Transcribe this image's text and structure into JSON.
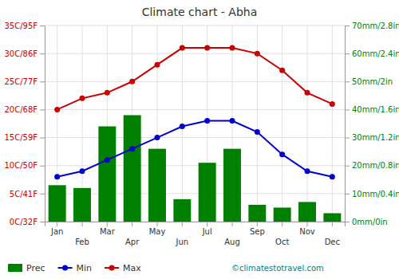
{
  "chart_data": {
    "type": "bar",
    "title": "Climate chart - Abha",
    "categories": [
      "Jan",
      "Feb",
      "Mar",
      "Apr",
      "May",
      "Jun",
      "Jul",
      "Aug",
      "Sep",
      "Oct",
      "Nov",
      "Dec"
    ],
    "series": [
      {
        "name": "Prec",
        "type": "bar",
        "axis": "y2",
        "color": "#008000",
        "values": [
          13,
          12,
          34,
          38,
          26,
          8,
          21,
          26,
          6,
          5,
          7,
          3
        ]
      },
      {
        "name": "Min",
        "type": "line",
        "color": "#0000cc",
        "marker": "circle",
        "line_style": "solid",
        "values": [
          8,
          9,
          11,
          13,
          15,
          17,
          18,
          18,
          16,
          12,
          9,
          8
        ]
      },
      {
        "name": "Max",
        "type": "line",
        "color": "#cc0000",
        "marker": "circle",
        "line_style": "solid",
        "values": [
          20,
          22,
          23,
          25,
          28,
          31,
          31,
          31,
          30,
          27,
          23,
          21
        ]
      }
    ],
    "ylim": [
      0,
      35
    ],
    "yticks": [
      {
        "value": 0,
        "label": "0C/32F"
      },
      {
        "value": 5,
        "label": "5C/41F"
      },
      {
        "value": 10,
        "label": "10C/50F"
      },
      {
        "value": 15,
        "label": "15C/59F"
      },
      {
        "value": 20,
        "label": "20C/68F"
      },
      {
        "value": 25,
        "label": "25C/77F"
      },
      {
        "value": 30,
        "label": "30C/86F"
      },
      {
        "value": 35,
        "label": "35C/95F"
      }
    ],
    "y2lim": [
      0,
      70
    ],
    "y2ticks": [
      {
        "value": 0,
        "label": "0mm/0in"
      },
      {
        "value": 10,
        "label": "10mm/0.4in"
      },
      {
        "value": 20,
        "label": "20mm/0.8in"
      },
      {
        "value": 30,
        "label": "30mm/1.2in"
      },
      {
        "value": 40,
        "label": "40mm/1.6in"
      },
      {
        "value": 50,
        "label": "50mm/2in"
      },
      {
        "value": 60,
        "label": "60mm/2.4in"
      },
      {
        "value": 70,
        "label": "70mm/2.8in"
      }
    ],
    "grid": true,
    "legend": "bottom-left",
    "annotations": [
      {
        "text": "©climatestotravel.com",
        "color": "#008080"
      }
    ]
  }
}
